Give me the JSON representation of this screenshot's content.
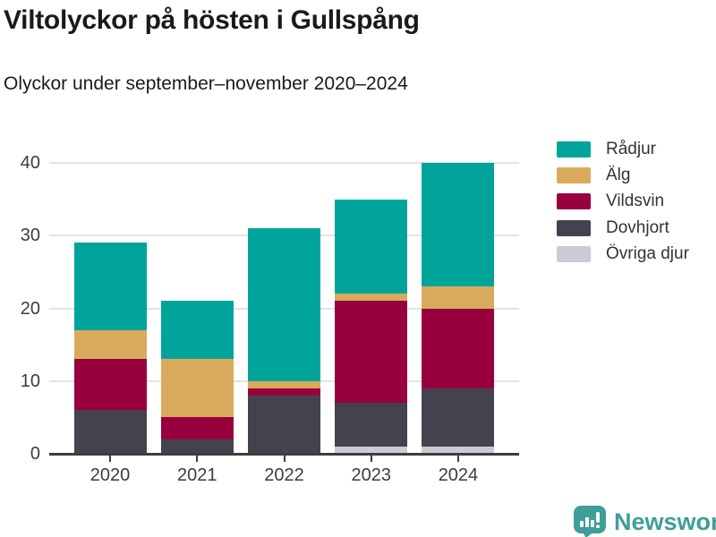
{
  "header": {
    "title": "Viltolyckor på hösten i Gullspång",
    "subtitle": "Olyckor under september–november 2020–2024"
  },
  "chart_data": {
    "type": "bar",
    "stacked": true,
    "title": "Viltolyckor på hösten i Gullspång",
    "subtitle": "Olyckor under september–november 2020–2024",
    "categories": [
      "2020",
      "2021",
      "2022",
      "2023",
      "2024"
    ],
    "series": [
      {
        "name": "Rådjur",
        "color": "#00a49a",
        "values": [
          12,
          8,
          21,
          13,
          17
        ]
      },
      {
        "name": "Älg",
        "color": "#daaa5c",
        "values": [
          4,
          8,
          1,
          1,
          3
        ]
      },
      {
        "name": "Vildsvin",
        "color": "#98003e",
        "values": [
          7,
          3,
          1,
          14,
          11
        ]
      },
      {
        "name": "Dovhjort",
        "color": "#45424f",
        "values": [
          6,
          2,
          8,
          6,
          8
        ]
      },
      {
        "name": "Övriga djur",
        "color": "#cccad5",
        "values": [
          0,
          0,
          0,
          1,
          1
        ]
      }
    ],
    "totals": [
      29,
      21,
      31,
      35,
      40
    ],
    "xlabel": "",
    "ylabel": "",
    "ylim": [
      0,
      40
    ],
    "yticks": [
      0,
      10,
      20,
      30,
      40
    ],
    "grid": true,
    "legend_position": "right",
    "stack_order": "first_series_on_top"
  },
  "colors": {
    "grid": "#e3e3e3",
    "axis": "#3d3d3d",
    "title_text": "#1a1a1a",
    "tick_text": "#3d3d3d",
    "legend_text": "#333333",
    "brand_teal": "#3f9e99"
  },
  "brand": {
    "name": "Newsworthy"
  }
}
